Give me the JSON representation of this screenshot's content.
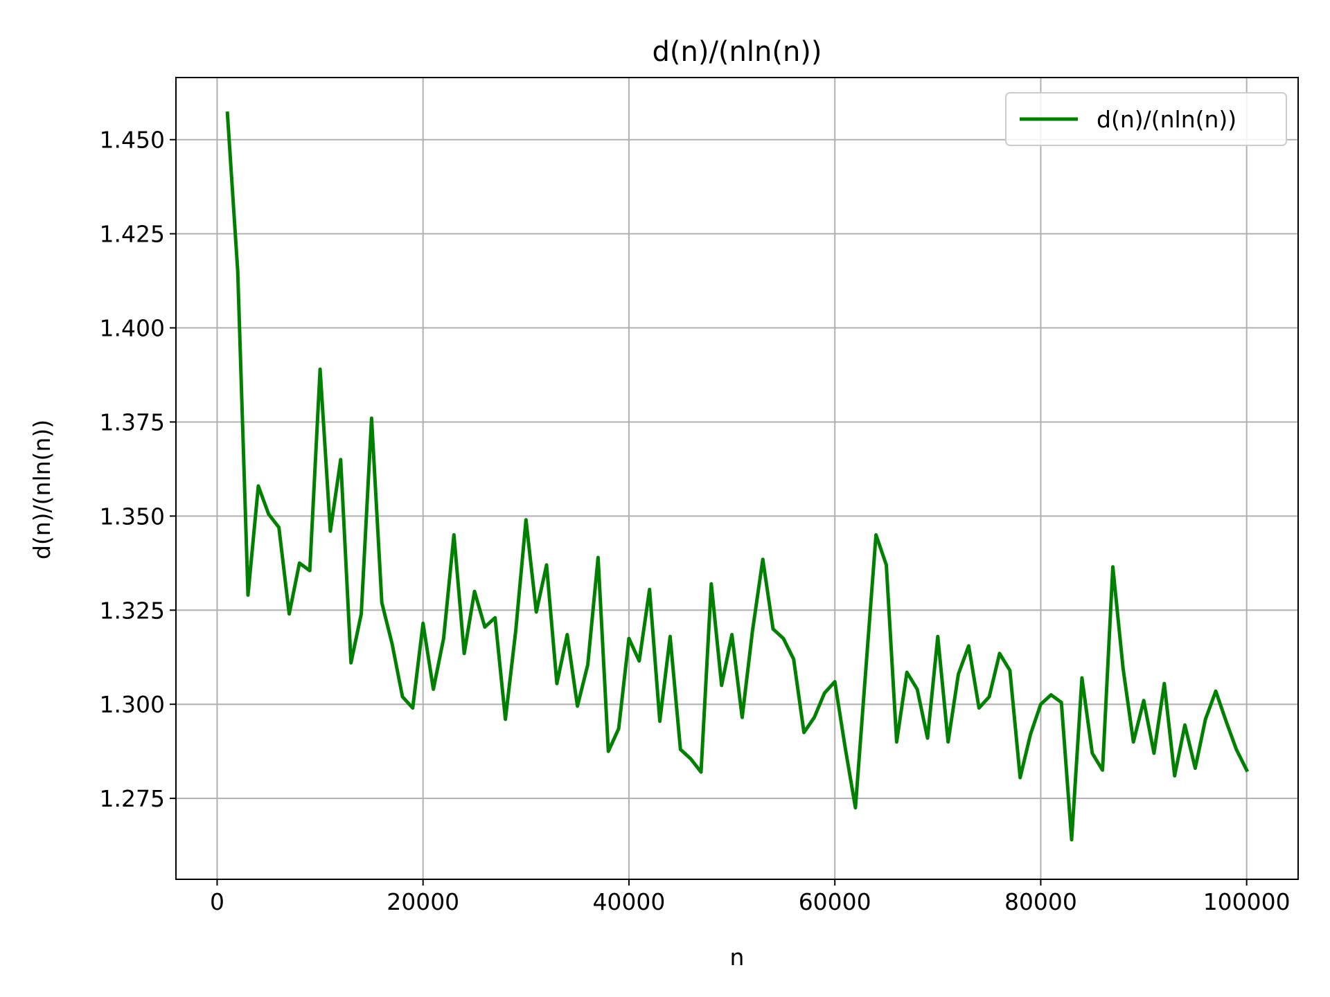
{
  "chart_data": {
    "type": "line",
    "title": "d(n)/(nln(n))",
    "xlabel": "n",
    "ylabel": "d(n)/(nln(n))",
    "xlim": [
      -4000,
      105000
    ],
    "ylim": [
      1.2535,
      1.4665
    ],
    "xticks": [
      0,
      20000,
      40000,
      60000,
      80000,
      100000
    ],
    "xtick_labels": [
      "0",
      "20000",
      "40000",
      "60000",
      "80000",
      "100000"
    ],
    "yticks": [
      1.275,
      1.3,
      1.325,
      1.35,
      1.375,
      1.4,
      1.425,
      1.45
    ],
    "ytick_labels": [
      "1.275",
      "1.300",
      "1.325",
      "1.350",
      "1.375",
      "1.400",
      "1.425",
      "1.450"
    ],
    "grid": true,
    "legend": "upper right",
    "series": [
      {
        "name": "d(n)/(nln(n))",
        "color": "#008000",
        "x": [
          1000,
          2000,
          3000,
          4000,
          5000,
          6000,
          7000,
          8000,
          9000,
          10000,
          11000,
          12000,
          13000,
          14000,
          15000,
          16000,
          17000,
          18000,
          19000,
          20000,
          21000,
          22000,
          23000,
          24000,
          25000,
          26000,
          27000,
          28000,
          29000,
          30000,
          31000,
          32000,
          33000,
          34000,
          35000,
          36000,
          37000,
          38000,
          39000,
          40000,
          41000,
          42000,
          43000,
          44000,
          45000,
          46000,
          47000,
          48000,
          49000,
          50000,
          51000,
          52000,
          53000,
          54000,
          55000,
          56000,
          57000,
          58000,
          59000,
          60000,
          61000,
          62000,
          63000,
          64000,
          65000,
          66000,
          67000,
          68000,
          69000,
          70000,
          71000,
          72000,
          73000,
          74000,
          75000,
          76000,
          77000,
          78000,
          79000,
          80000,
          81000,
          82000,
          83000,
          84000,
          85000,
          86000,
          87000,
          88000,
          89000,
          90000,
          91000,
          92000,
          93000,
          94000,
          95000,
          96000,
          97000,
          98000,
          99000,
          100000
        ],
        "values": [
          1.457,
          1.415,
          1.329,
          1.358,
          1.3505,
          1.347,
          1.324,
          1.3375,
          1.3355,
          1.389,
          1.346,
          1.365,
          1.311,
          1.324,
          1.376,
          1.327,
          1.316,
          1.302,
          1.299,
          1.3215,
          1.304,
          1.3175,
          1.345,
          1.3135,
          1.33,
          1.3205,
          1.323,
          1.296,
          1.3195,
          1.349,
          1.3245,
          1.337,
          1.3055,
          1.3185,
          1.2995,
          1.3105,
          1.339,
          1.2875,
          1.2935,
          1.3175,
          1.3115,
          1.3305,
          1.2955,
          1.318,
          1.288,
          1.2855,
          1.282,
          1.332,
          1.305,
          1.3185,
          1.2965,
          1.3195,
          1.3385,
          1.32,
          1.3175,
          1.312,
          1.2925,
          1.2965,
          1.303,
          1.306,
          1.2885,
          1.2725,
          1.309,
          1.345,
          1.337,
          1.29,
          1.3085,
          1.304,
          1.291,
          1.318,
          1.29,
          1.308,
          1.3155,
          1.299,
          1.302,
          1.3135,
          1.309,
          1.2805,
          1.292,
          1.3,
          1.3025,
          1.3005,
          1.264,
          1.307,
          1.287,
          1.2825,
          1.3365,
          1.3095,
          1.29,
          1.301,
          1.287,
          1.3055,
          1.281,
          1.2945,
          1.283,
          1.296,
          1.3035,
          1.2955,
          1.288,
          1.2825
        ]
      }
    ]
  }
}
